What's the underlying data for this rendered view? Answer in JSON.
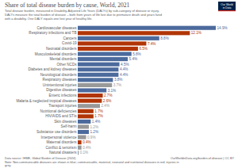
{
  "chart_data": {
    "type": "bar",
    "orientation": "horizontal",
    "title": "Share of total disease burden by cause, World, 2021",
    "subtitle": [
      "Total disease burden, measured in Disability-Adjusted Life Years (DALYs) by sub-category of disease or injury.",
      "DALYs measure the total burden of disease – both from years of life lost due to premature death and years lived",
      "with a disability. One DALY equals one lost year of healthy life."
    ],
    "logo": [
      "Our World",
      "in Data"
    ],
    "source": "Data source: IHME, Global Burden of Disease (2024)",
    "url": "OurWorldinData.org/burden-of-disease | CC BY",
    "note": [
      "Note: Non-communicable diseases are shown in blue; communicable, maternal, neonatal and nutritional diseases in red; injuries in",
      "grey."
    ],
    "categories": [
      "Cardiovascular diseases",
      "Respiratory infections and TB",
      "Cancers",
      "Covid-19",
      "Neonatal disorders",
      "Musculoskeletal disorders",
      "Mental disorders",
      "Other NCDs",
      "Diabetes and kidney diseases",
      "Neurological disorders",
      "Respiratory diseases",
      "Unintentional injuries",
      "Digestive diseases",
      "Enteric infections",
      "Malaria & neglected tropical diseases",
      "Transport injuries",
      "Nutritional deficiencies",
      "HIV/AIDS and STIs",
      "Skin diseases",
      "Self-harm",
      "Substance use disorders",
      "Interpersonal violence",
      "Maternal disorders",
      "Conflict & terrorism",
      "Natural disasters"
    ],
    "values": [
      14.9,
      12.1,
      8.8,
      7.4,
      6.5,
      5.8,
      5.4,
      4.5,
      4.4,
      4.4,
      3.8,
      3.7,
      3.1,
      2.7,
      2.6,
      2.4,
      1.7,
      1.7,
      1.4,
      1.2,
      1.2,
      0.9,
      0.4,
      0.4,
      0.1
    ],
    "value_labels": [
      "14.9%",
      "12.1%",
      "8.8%",
      "7.4%",
      "6.5%",
      "5.8%",
      "5.4%",
      "4.5%",
      "4.4%",
      "4.4%",
      "3.8%",
      "3.7%",
      "3.1%",
      "2.7%",
      "2.6%",
      "2.4%",
      "1.7%",
      "1.7%",
      "1.4%",
      "1.2%",
      "1.2%",
      "0.9%",
      "0.4%",
      "0.4%",
      "0.1%"
    ],
    "colors": [
      "#4c6a9c",
      "#b13507",
      "#4c6a9c",
      "#b13507",
      "#b13507",
      "#4c6a9c",
      "#4c6a9c",
      "#4c6a9c",
      "#4c6a9c",
      "#4c6a9c",
      "#4c6a9c",
      "#999999",
      "#4c6a9c",
      "#b13507",
      "#b13507",
      "#999999",
      "#b13507",
      "#b13507",
      "#4c6a9c",
      "#999999",
      "#4c6a9c",
      "#999999",
      "#b13507",
      "#999999",
      "#999999"
    ],
    "data_labels": true,
    "tick_labels": "y"
  }
}
